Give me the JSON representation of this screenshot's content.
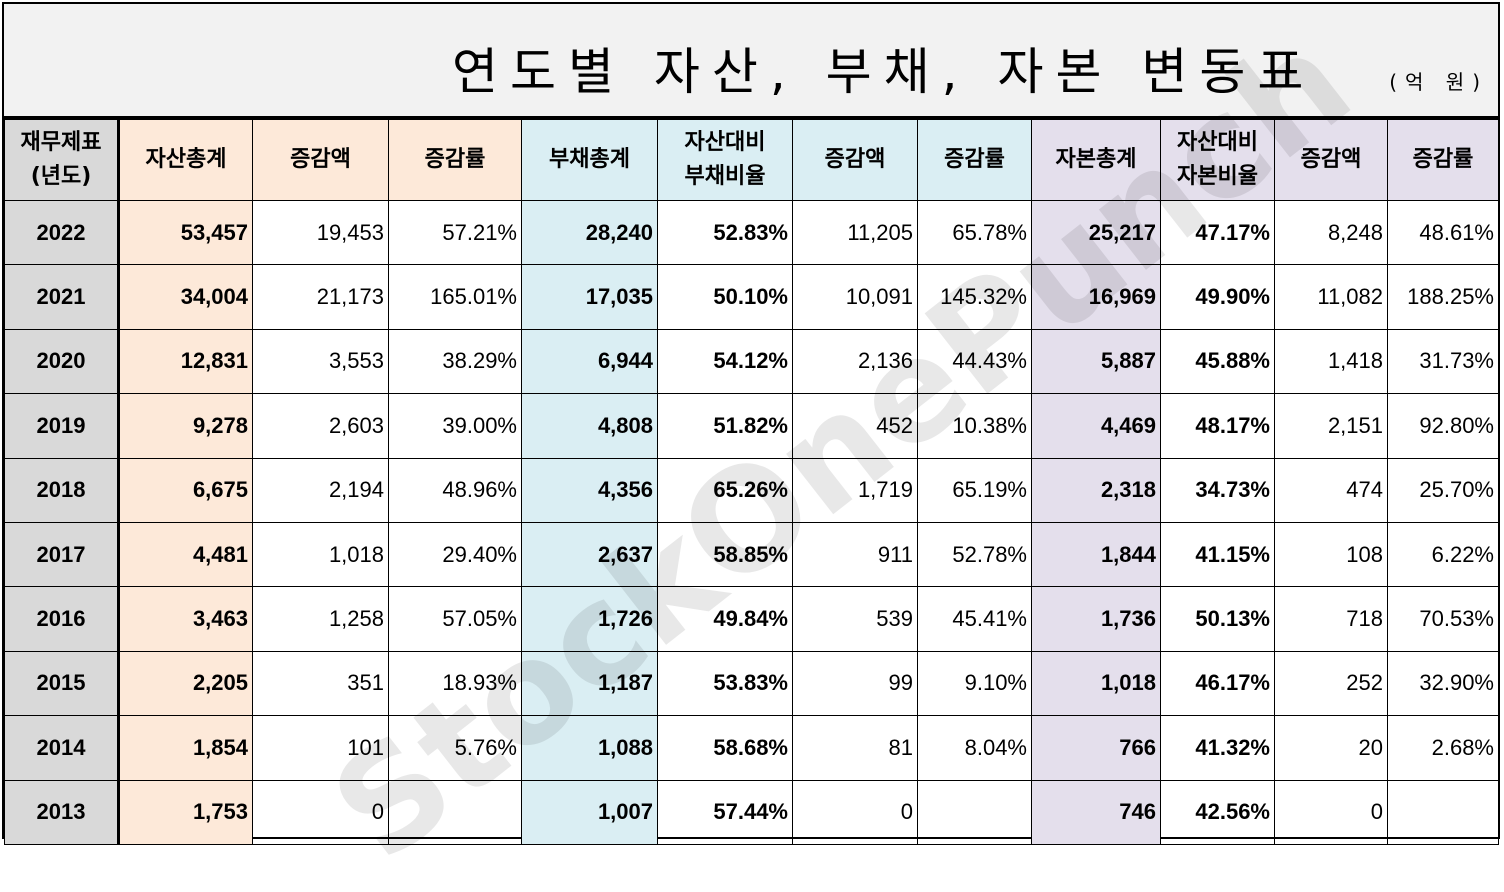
{
  "title": "연도별 자산, 부채, 자본 변동표",
  "unit": "(억 원)",
  "watermark": "StockOnePunch",
  "headers": {
    "year_line1": "재무제표",
    "year_line2": "(년도)",
    "asset_total": "자산총계",
    "asset_change": "증감액",
    "asset_rate": "증감률",
    "debt_total": "부채총계",
    "debt_ratio_line1": "자산대비",
    "debt_ratio_line2": "부채비율",
    "debt_change": "증감액",
    "debt_rate": "증감률",
    "equity_total": "자본총계",
    "equity_ratio_line1": "자산대비",
    "equity_ratio_line2": "자본비율",
    "equity_change": "증감액",
    "equity_rate": "증감률"
  },
  "rows": [
    [
      "2022",
      "53,457",
      "19,453",
      "57.21%",
      "28,240",
      "52.83%",
      "11,205",
      "65.78%",
      "25,217",
      "47.17%",
      "8,248",
      "48.61%"
    ],
    [
      "2021",
      "34,004",
      "21,173",
      "165.01%",
      "17,035",
      "50.10%",
      "10,091",
      "145.32%",
      "16,969",
      "49.90%",
      "11,082",
      "188.25%"
    ],
    [
      "2020",
      "12,831",
      "3,553",
      "38.29%",
      "6,944",
      "54.12%",
      "2,136",
      "44.43%",
      "5,887",
      "45.88%",
      "1,418",
      "31.73%"
    ],
    [
      "2019",
      "9,278",
      "2,603",
      "39.00%",
      "4,808",
      "51.82%",
      "452",
      "10.38%",
      "4,469",
      "48.17%",
      "2,151",
      "92.80%"
    ],
    [
      "2018",
      "6,675",
      "2,194",
      "48.96%",
      "4,356",
      "65.26%",
      "1,719",
      "65.19%",
      "2,318",
      "34.73%",
      "474",
      "25.70%"
    ],
    [
      "2017",
      "4,481",
      "1,018",
      "29.40%",
      "2,637",
      "58.85%",
      "911",
      "52.78%",
      "1,844",
      "41.15%",
      "108",
      "6.22%"
    ],
    [
      "2016",
      "3,463",
      "1,258",
      "57.05%",
      "1,726",
      "49.84%",
      "539",
      "45.41%",
      "1,736",
      "50.13%",
      "718",
      "70.53%"
    ],
    [
      "2015",
      "2,205",
      "351",
      "18.93%",
      "1,187",
      "53.83%",
      "99",
      "9.10%",
      "1,018",
      "46.17%",
      "252",
      "32.90%"
    ],
    [
      "2014",
      "1,854",
      "101",
      "5.76%",
      "1,088",
      "58.68%",
      "81",
      "8.04%",
      "766",
      "41.32%",
      "20",
      "2.68%"
    ],
    [
      "2013",
      "1,753",
      "0",
      "",
      "1,007",
      "57.44%",
      "0",
      "",
      "746",
      "42.56%",
      "0",
      ""
    ]
  ]
}
